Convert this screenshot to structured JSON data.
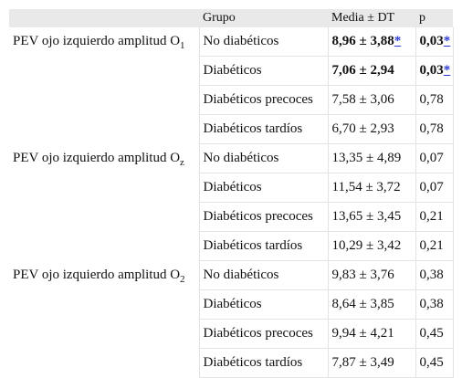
{
  "headers": {
    "grupo": "Grupo",
    "media": "Media ± DT",
    "p": "p"
  },
  "sections": [
    {
      "label": "PEV ojo izquierdo amplitud O",
      "label_sub": "1",
      "rows": [
        {
          "group": "No diabéticos",
          "media": "8,96 ± 3,88",
          "media_star": "*",
          "p": "0,03",
          "p_star": "*",
          "bold": true
        },
        {
          "group": "Diabéticos",
          "media": "7,06 ± 2,94",
          "media_star": "",
          "p": "0,03",
          "p_star": "*",
          "bold": true
        },
        {
          "group": "Diabéticos precoces",
          "media": "7,58 ± 3,06",
          "p": "0,78"
        },
        {
          "group": "Diabéticos tardíos",
          "media": "6,70 ± 2,93",
          "p": "0,78"
        }
      ]
    },
    {
      "label": "PEV ojo izquierdo amplitud O",
      "label_sub": "z",
      "rows": [
        {
          "group": "No diabéticos",
          "media": "13,35 ± 4,89",
          "p": "0,07"
        },
        {
          "group": "Diabéticos",
          "media": "11,54 ± 3,72",
          "p": "0,07"
        },
        {
          "group": "Diabéticos precoces",
          "media": "13,65 ± 3,45",
          "p": "0,21"
        },
        {
          "group": "Diabéticos tardíos",
          "media": "10,29 ± 3,42",
          "p": "0,21"
        }
      ]
    },
    {
      "label": "PEV ojo izquierdo amplitud O",
      "label_sub": "2",
      "rows": [
        {
          "group": "No diabéticos",
          "media": "9,83 ± 3,76",
          "p": "0,38"
        },
        {
          "group": "Diabéticos",
          "media": "8,64 ± 3,85",
          "p": "0,38"
        },
        {
          "group": "Diabéticos precoces",
          "media": "9,94 ± 4,21",
          "p": "0,45"
        },
        {
          "group": "Diabéticos tardíos",
          "media": "7,87 ± 3,49",
          "p": "0,45"
        }
      ]
    }
  ]
}
